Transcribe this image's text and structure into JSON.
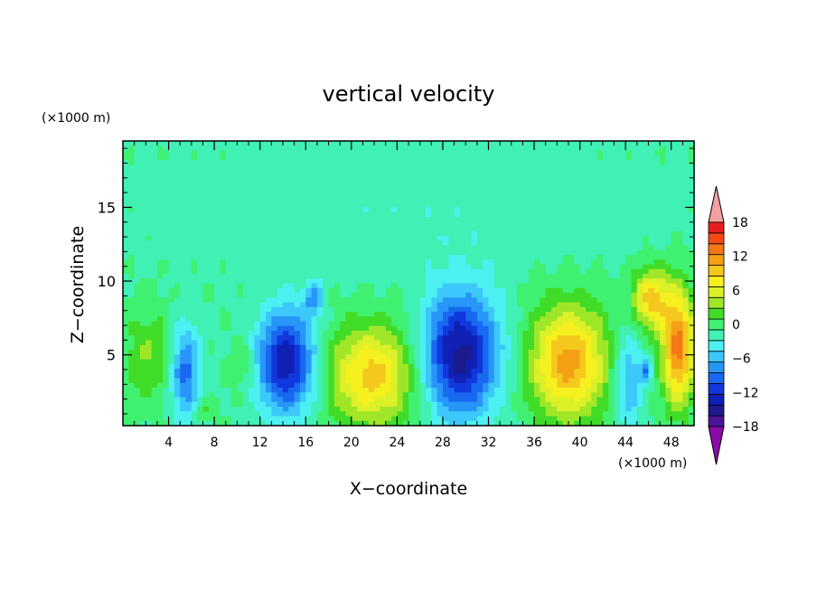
{
  "chart_data": {
    "type": "heatmap",
    "title": "vertical velocity",
    "xlabel": "X−coordinate",
    "ylabel": "Z−coordinate",
    "x_unit": "(×1000 m)",
    "y_unit": "(×1000 m)",
    "xlim": [
      0,
      50
    ],
    "ylim": [
      0.2,
      19.5
    ],
    "x_ticks": [
      4,
      8,
      12,
      16,
      20,
      24,
      28,
      32,
      36,
      40,
      44,
      48
    ],
    "y_ticks": [
      5,
      10,
      15
    ],
    "colorbar": {
      "levels": [
        -20,
        -18,
        -16,
        -14,
        -12,
        -10,
        -8,
        -6,
        -4,
        -2,
        0,
        2,
        4,
        6,
        8,
        10,
        12,
        14,
        16,
        18,
        20
      ],
      "tick_labels": [
        18,
        12,
        6,
        0,
        -6,
        -12,
        -18
      ],
      "colors": [
        "#8c0aa8",
        "#4b1494",
        "#1c1a8c",
        "#1020b4",
        "#1038dc",
        "#1868f0",
        "#2896f8",
        "#3cc8fa",
        "#4cf0f0",
        "#40f0b4",
        "#40f070",
        "#40dc28",
        "#a0e628",
        "#dcf028",
        "#f5f01e",
        "#f5c81e",
        "#f5a014",
        "#f57814",
        "#f54a14",
        "#e61e1e",
        "#f4a0a0"
      ],
      "extend": "both"
    },
    "features": [
      {
        "x": 2.2,
        "z": 5.0,
        "rx": 2.2,
        "rz": 3.0,
        "w": 4
      },
      {
        "x": 7.0,
        "z": 1.3,
        "rx": 1.0,
        "rz": 0.8,
        "w": 3
      },
      {
        "x": 5.5,
        "z": 3.8,
        "rx": 1.3,
        "rz": 3.2,
        "w": -9
      },
      {
        "x": 10.5,
        "z": 4.5,
        "rx": 1.0,
        "rz": 1.5,
        "w": 3
      },
      {
        "x": 14.3,
        "z": 4.5,
        "rx": 2.5,
        "rz": 3.5,
        "w": -14
      },
      {
        "x": 16.7,
        "z": 8.8,
        "rx": 0.8,
        "rz": 1.2,
        "w": -6
      },
      {
        "x": 21.8,
        "z": 3.6,
        "rx": 3.8,
        "rz": 3.3,
        "w": 11
      },
      {
        "x": 29.5,
        "z": 5.0,
        "rx": 3.3,
        "rz": 4.2,
        "w": -15
      },
      {
        "x": 39.0,
        "z": 4.5,
        "rx": 3.3,
        "rz": 3.8,
        "w": 13
      },
      {
        "x": 44.3,
        "z": 3.3,
        "rx": 1.2,
        "rz": 3.5,
        "w": -6
      },
      {
        "x": 45.8,
        "z": 4.0,
        "rx": 0.5,
        "rz": 1.0,
        "w": -7
      },
      {
        "x": 46.2,
        "z": 8.8,
        "rx": 1.6,
        "rz": 2.0,
        "w": 11
      },
      {
        "x": 48.6,
        "z": 5.5,
        "rx": 1.4,
        "rz": 3.8,
        "w": 15
      },
      {
        "x": 25.0,
        "z": 15.0,
        "rx": 25.0,
        "rz": 4.5,
        "w": -1.5
      }
    ]
  }
}
